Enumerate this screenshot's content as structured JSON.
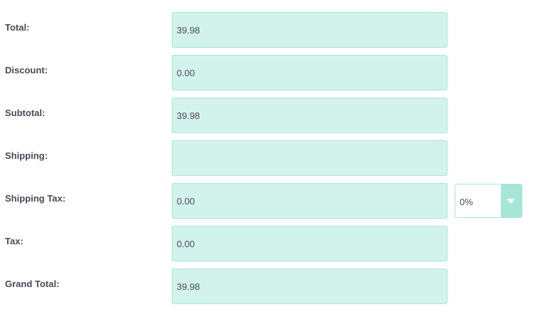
{
  "totals_form": {
    "rows": [
      {
        "label": "Total:",
        "value": "39.98"
      },
      {
        "label": "Discount:",
        "value": "0.00"
      },
      {
        "label": "Subtotal:",
        "value": "39.98"
      },
      {
        "label": "Shipping:",
        "value": ""
      },
      {
        "label": "Shipping Tax:",
        "value": "0.00"
      },
      {
        "label": "Tax:",
        "value": "0.00"
      },
      {
        "label": "Grand Total:",
        "value": "39.98"
      }
    ],
    "shipping_tax_rate": {
      "selected": "0%"
    }
  },
  "colors": {
    "field_background": "#d2f3ec",
    "field_border": "#a5e6d7",
    "label_text": "#4a4a5a",
    "select_button": "#a5e6d7"
  },
  "icons": {
    "select_caret": "chevron-down-icon"
  }
}
